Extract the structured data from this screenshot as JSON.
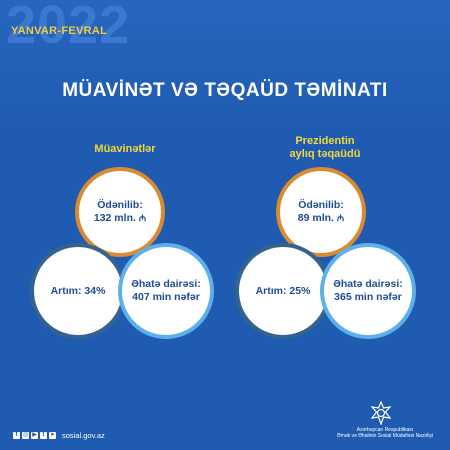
{
  "header": {
    "year": "2022",
    "period": "YANVAR-FEVRAL",
    "title": "MÜAVİNƏT VƏ TƏQAÜD TƏMİNATI"
  },
  "panels": [
    {
      "heading_line1": "Müavinətlər",
      "heading_line2": "",
      "paid_label": "Ödənilib:",
      "paid_value": "132 mln.",
      "growth": "Artım: 34%",
      "coverage_label": "Əhatə dairəsi:",
      "coverage_value": "407 min nəfər"
    },
    {
      "heading_line1": "Prezidentin",
      "heading_line2": "aylıq təqaüdü",
      "paid_label": "Ödənilib:",
      "paid_value": "89 mln.",
      "growth": "Artım: 25%",
      "coverage_label": "Əhatə dairəsi:",
      "coverage_value": "365 min nəfər"
    }
  ],
  "footer": {
    "website": "sosial.gov.az",
    "org_line1": "Azərbaycan Respublikası",
    "org_line2": "Əmək və Əhalinin Sosial Müdafiəsi Nazirliyi",
    "social_icons": [
      "facebook-icon",
      "instagram-icon",
      "youtube-icon",
      "twitter-icon",
      "telegram-icon"
    ]
  },
  "colors": {
    "background": "#1f5bb1",
    "accent_yellow": "#f2d83a",
    "ring_orange": "#d98a32",
    "ring_dark": "#35638f",
    "ring_light": "#5db0ea",
    "text_dark": "#1e4c93"
  },
  "currency_symbol": "₼"
}
